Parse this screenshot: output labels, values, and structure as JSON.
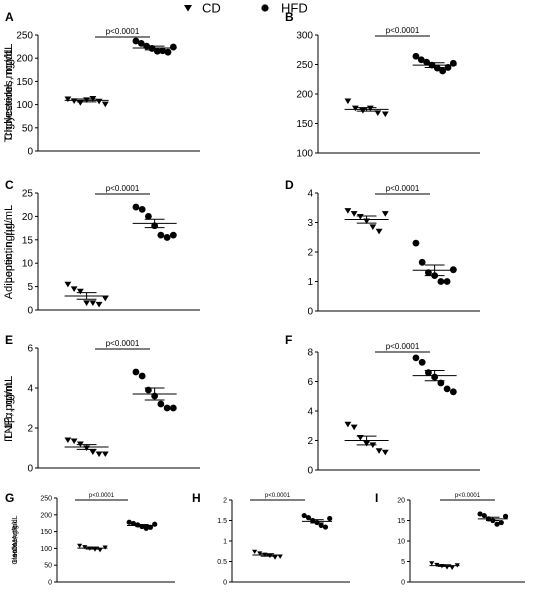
{
  "legend": {
    "placement": "top-center",
    "entries": [
      {
        "marker": "triangle-down",
        "label": "CD"
      },
      {
        "marker": "circle",
        "label": "HFD"
      }
    ]
  },
  "chart_data": [
    {
      "panel": "A",
      "type": "scatter",
      "ylabel": "Triglycerides, mg/dL",
      "ylim": [
        0,
        250
      ],
      "yticks": [
        0,
        50,
        100,
        150,
        200,
        250
      ],
      "annotation": "p<0.0001",
      "groups": [
        "CD",
        "HFD"
      ],
      "series": [
        {
          "name": "CD",
          "marker": "triangle-down",
          "mean": 109,
          "sem": 3,
          "values": [
            112,
            108,
            104,
            110,
            113,
            107,
            101
          ]
        },
        {
          "name": "HFD",
          "marker": "circle",
          "mean": 222,
          "sem": 4,
          "values": [
            237,
            232,
            226,
            221,
            215,
            216,
            213,
            224
          ]
        }
      ]
    },
    {
      "panel": "B",
      "type": "scatter",
      "ylabel": "Cholesterol, mg/dL",
      "ylim": [
        100,
        300
      ],
      "yticks": [
        100,
        150,
        200,
        250,
        300
      ],
      "annotation": "p<0.0001",
      "groups": [
        "CD",
        "HFD"
      ],
      "series": [
        {
          "name": "CD",
          "marker": "triangle-down",
          "mean": 174,
          "sem": 3,
          "values": [
            188,
            176,
            172,
            176,
            168,
            166
          ]
        },
        {
          "name": "HFD",
          "marker": "circle",
          "mean": 249,
          "sem": 4,
          "values": [
            264,
            258,
            254,
            249,
            244,
            239,
            245,
            252
          ]
        }
      ]
    },
    {
      "panel": "C",
      "type": "scatter",
      "ylabel": "Leptin, ng/µL",
      "ylim": [
        0,
        25
      ],
      "yticks": [
        0,
        5,
        10,
        15,
        20,
        25
      ],
      "annotation": "p<0.0001",
      "groups": [
        "CD",
        "HFD"
      ],
      "series": [
        {
          "name": "CD",
          "marker": "triangle-down",
          "mean": 3.0,
          "sem": 0.7,
          "values": [
            5.5,
            4.5,
            4.0,
            1.5,
            1.5,
            1.2,
            2.5
          ]
        },
        {
          "name": "HFD",
          "marker": "circle",
          "mean": 18.5,
          "sem": 0.9,
          "values": [
            22,
            21.5,
            20,
            18,
            16,
            15.5,
            16
          ]
        }
      ]
    },
    {
      "panel": "D",
      "type": "scatter",
      "ylabel": "Adiponectin, µg/mL",
      "ylim": [
        0,
        4
      ],
      "yticks": [
        0,
        1,
        2,
        3,
        4
      ],
      "annotation": "p<0.0001",
      "groups": [
        "CD",
        "HFD"
      ],
      "series": [
        {
          "name": "CD",
          "marker": "triangle-down",
          "mean": 3.1,
          "sem": 0.12,
          "values": [
            3.4,
            3.3,
            3.2,
            3.05,
            2.85,
            2.7,
            3.3
          ]
        },
        {
          "name": "HFD",
          "marker": "circle",
          "mean": 1.38,
          "sem": 0.18,
          "values": [
            2.3,
            1.65,
            1.3,
            1.2,
            1.0,
            1.0,
            1.4
          ]
        }
      ]
    },
    {
      "panel": "E",
      "type": "scatter",
      "ylabel": "TNFα, ng/mL",
      "ylim": [
        0,
        6
      ],
      "yticks": [
        0,
        2,
        4,
        6
      ],
      "annotation": "p<0.0001",
      "groups": [
        "CD",
        "HFD"
      ],
      "series": [
        {
          "name": "CD",
          "marker": "triangle-down",
          "mean": 1.05,
          "sem": 0.12,
          "values": [
            1.4,
            1.35,
            1.2,
            1.0,
            0.8,
            0.7,
            0.7
          ]
        },
        {
          "name": "HFD",
          "marker": "circle",
          "mean": 3.7,
          "sem": 0.3,
          "values": [
            4.8,
            4.6,
            3.9,
            3.6,
            3.2,
            3.0,
            3.0
          ]
        }
      ]
    },
    {
      "panel": "F",
      "type": "scatter",
      "ylabel": "IL-1β, pg/mL",
      "ylim": [
        0,
        8
      ],
      "yticks": [
        0,
        2,
        4,
        6,
        8
      ],
      "annotation": "p<0.0001",
      "groups": [
        "CD",
        "HFD"
      ],
      "series": [
        {
          "name": "CD",
          "marker": "triangle-down",
          "mean": 2.0,
          "sem": 0.3,
          "values": [
            3.1,
            2.9,
            2.2,
            1.8,
            1.7,
            1.3,
            1.2
          ]
        },
        {
          "name": "HFD",
          "marker": "circle",
          "mean": 6.4,
          "sem": 0.35,
          "values": [
            7.6,
            7.3,
            6.6,
            6.3,
            5.9,
            5.5,
            5.3
          ]
        }
      ]
    },
    {
      "panel": "G",
      "type": "scatter",
      "ylabel": "Glucose, mg/dL",
      "ylim": [
        0,
        250
      ],
      "yticks": [
        0,
        50,
        100,
        150,
        200,
        250
      ],
      "annotation": "p<0.0001",
      "groups": [
        "CD",
        "HFD"
      ],
      "series": [
        {
          "name": "CD",
          "marker": "triangle-down",
          "mean": 101,
          "sem": 3,
          "values": [
            108,
            104,
            100,
            97,
            95,
            103
          ]
        },
        {
          "name": "HFD",
          "marker": "circle",
          "mean": 168,
          "sem": 3,
          "values": [
            178,
            174,
            170,
            165,
            160,
            163,
            172
          ]
        }
      ]
    },
    {
      "panel": "H",
      "type": "scatter",
      "ylabel": "Insulin, ng/mL",
      "ylim": [
        0,
        2.0
      ],
      "yticks": [
        0,
        0.5,
        1.0,
        1.5,
        2.0
      ],
      "annotation": "p<0.0001",
      "groups": [
        "CD",
        "HFD"
      ],
      "series": [
        {
          "name": "CD",
          "marker": "triangle-down",
          "mean": 0.66,
          "sem": 0.03,
          "values": [
            0.74,
            0.7,
            0.67,
            0.64,
            0.6,
            0.62
          ]
        },
        {
          "name": "HFD",
          "marker": "circle",
          "mean": 1.48,
          "sem": 0.04,
          "values": [
            1.62,
            1.57,
            1.5,
            1.45,
            1.38,
            1.34,
            1.55
          ]
        }
      ]
    },
    {
      "panel": "I",
      "type": "scatter",
      "ylabel": "HOMA-IR",
      "ylim": [
        0,
        20
      ],
      "yticks": [
        0,
        5,
        10,
        15,
        20
      ],
      "annotation": "p<0.0001",
      "groups": [
        "CD",
        "HFD"
      ],
      "series": [
        {
          "name": "CD",
          "marker": "triangle-down",
          "mean": 4.0,
          "sem": 0.2,
          "values": [
            4.6,
            4.2,
            3.9,
            3.6,
            3.5,
            4.1
          ]
        },
        {
          "name": "HFD",
          "marker": "circle",
          "mean": 15.4,
          "sem": 0.4,
          "values": [
            16.6,
            16.2,
            15.4,
            15.0,
            14.1,
            14.5,
            16.0
          ]
        }
      ]
    }
  ]
}
